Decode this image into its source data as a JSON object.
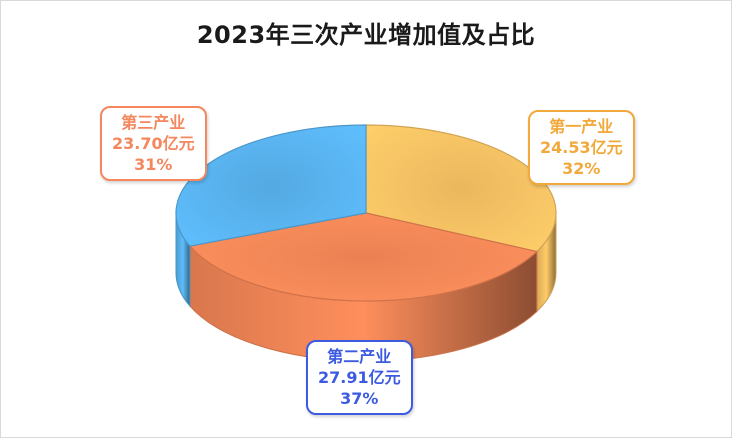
{
  "chart_data": {
    "type": "pie",
    "title": "2023年三次产业增加值及占比",
    "unit": "亿元",
    "slices": [
      {
        "name": "第一产业",
        "value": 24.53,
        "value_text": "24.53亿元",
        "percent": 32,
        "percent_text": "32%",
        "color": "#FFC766",
        "label_color": "#F2A93B"
      },
      {
        "name": "第二产业",
        "value": 27.91,
        "value_text": "27.91亿元",
        "percent": 37,
        "percent_text": "37%",
        "color": "#FF8C5A",
        "label_color": "#F4875E"
      },
      {
        "name": "第三产业",
        "value": 23.7,
        "value_text": "23.70亿元",
        "percent": 31,
        "percent_text": "31%",
        "color": "#5BB8F5",
        "label_color": "#3D5BE0"
      }
    ]
  }
}
